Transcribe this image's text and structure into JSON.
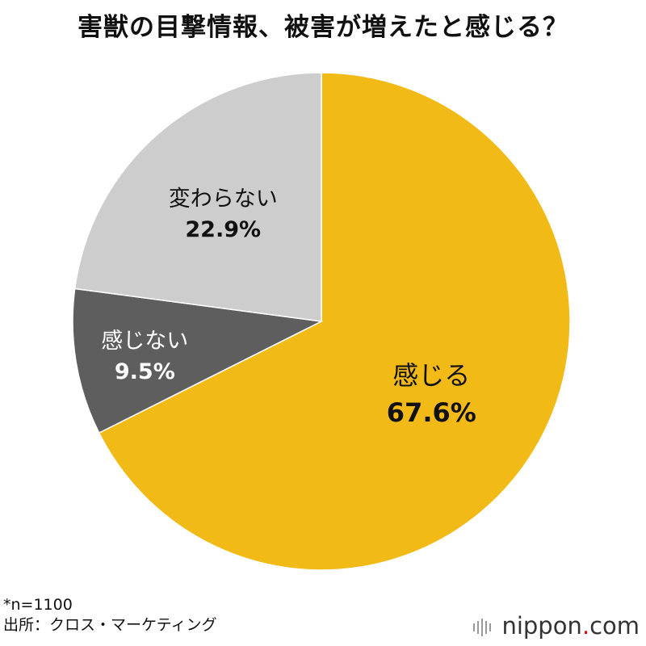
{
  "chart_data": {
    "type": "pie",
    "title": "害獣の目撃情報、被害が増えたと感じる？",
    "slices": [
      {
        "label": "感じる",
        "value": 67.6,
        "value_label": "67.6%",
        "color": "#F2BA16",
        "text_color": "#111111"
      },
      {
        "label": "感じない",
        "value": 9.5,
        "value_label": "9.5%",
        "color": "#5E5E5E",
        "text_color": "#ffffff"
      },
      {
        "label": "変わらない",
        "value": 22.9,
        "value_label": "22.9%",
        "color": "#CDCDCD",
        "text_color": "#111111"
      }
    ],
    "start": "top",
    "direction": "clockwise"
  },
  "footnote": {
    "sample": "*n=1100",
    "source": "出所：クロス・マーケティング"
  },
  "brand": {
    "name": "nippon",
    "dot": ".",
    "suffix": "com"
  }
}
